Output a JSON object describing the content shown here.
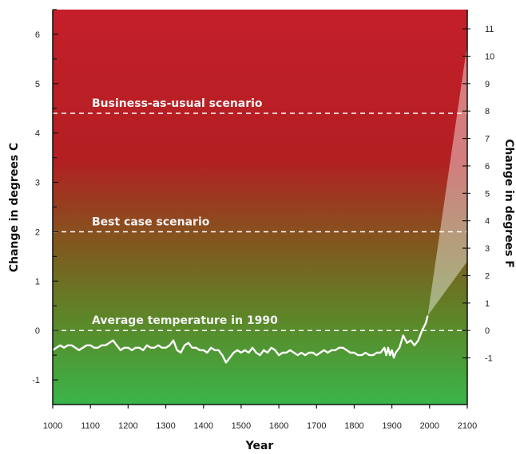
{
  "chart_data": {
    "type": "line",
    "xlabel": "Year",
    "ylabel_left": "Change in degrees C",
    "ylabel_right": "Change in degrees F",
    "xlim": [
      1000,
      2100
    ],
    "ylim": [
      -1.5,
      6.5
    ],
    "x_ticks": [
      1000,
      1100,
      1200,
      1300,
      1400,
      1500,
      1600,
      1700,
      1800,
      1900,
      2000,
      2100
    ],
    "y_ticks_left": [
      -1,
      0,
      1,
      2,
      3,
      4,
      5,
      6
    ],
    "y_ticks_right": [
      -1,
      0,
      1,
      2,
      3,
      4,
      5,
      6,
      7,
      8,
      9,
      10,
      11
    ],
    "reference_lines": [
      {
        "label": "Business-as-usual scenario",
        "y": 4.4
      },
      {
        "label": "Best case scenario",
        "y": 2.0
      },
      {
        "label": "Average temperature in 1990",
        "y": 0.0
      }
    ],
    "series": [
      {
        "x": [
          1000,
          1010,
          1020,
          1030,
          1040,
          1050,
          1060,
          1070,
          1080,
          1090,
          1100,
          1110,
          1120,
          1130,
          1140,
          1150,
          1160,
          1170,
          1180,
          1190,
          1200,
          1210,
          1220,
          1230,
          1240,
          1250,
          1260,
          1270,
          1280,
          1290,
          1300,
          1310,
          1320,
          1330,
          1340,
          1350,
          1360,
          1370,
          1380,
          1390,
          1400,
          1410,
          1420,
          1430,
          1440,
          1450,
          1460,
          1470,
          1480,
          1490,
          1500,
          1510,
          1520,
          1530,
          1540,
          1550,
          1560,
          1570,
          1580,
          1590,
          1600,
          1610,
          1620,
          1630,
          1640,
          1650,
          1660,
          1670,
          1680,
          1690,
          1700,
          1710,
          1720,
          1730,
          1740,
          1750,
          1760,
          1770,
          1780,
          1790,
          1800,
          1810,
          1820,
          1830,
          1840,
          1850,
          1860,
          1870,
          1880,
          1885,
          1890,
          1895,
          1900,
          1905,
          1910,
          1920,
          1930,
          1940,
          1950,
          1960,
          1970,
          1980,
          1990,
          1995
        ],
        "y": [
          -0.4,
          -0.35,
          -0.3,
          -0.35,
          -0.3,
          -0.3,
          -0.35,
          -0.4,
          -0.35,
          -0.3,
          -0.3,
          -0.35,
          -0.35,
          -0.3,
          -0.3,
          -0.25,
          -0.2,
          -0.3,
          -0.4,
          -0.35,
          -0.35,
          -0.4,
          -0.35,
          -0.35,
          -0.4,
          -0.3,
          -0.35,
          -0.35,
          -0.3,
          -0.35,
          -0.35,
          -0.3,
          -0.2,
          -0.4,
          -0.45,
          -0.3,
          -0.25,
          -0.35,
          -0.35,
          -0.4,
          -0.4,
          -0.45,
          -0.35,
          -0.4,
          -0.4,
          -0.5,
          -0.65,
          -0.55,
          -0.45,
          -0.4,
          -0.45,
          -0.4,
          -0.45,
          -0.35,
          -0.45,
          -0.5,
          -0.4,
          -0.45,
          -0.35,
          -0.4,
          -0.5,
          -0.45,
          -0.45,
          -0.4,
          -0.45,
          -0.5,
          -0.45,
          -0.5,
          -0.45,
          -0.45,
          -0.5,
          -0.45,
          -0.4,
          -0.45,
          -0.4,
          -0.4,
          -0.35,
          -0.35,
          -0.4,
          -0.45,
          -0.45,
          -0.5,
          -0.5,
          -0.45,
          -0.5,
          -0.5,
          -0.45,
          -0.45,
          -0.35,
          -0.5,
          -0.35,
          -0.5,
          -0.4,
          -0.55,
          -0.45,
          -0.35,
          -0.1,
          -0.25,
          -0.2,
          -0.3,
          -0.2,
          0.0,
          0.15,
          0.3
        ]
      }
    ],
    "projection_range": {
      "x": [
        1995,
        2100
      ],
      "y_start": 0.3,
      "y_low_end": 1.4,
      "y_high_end": 5.8
    }
  },
  "colors": {
    "background_top": "#c41f2a",
    "background_mid": "#7f5a1e",
    "background_bottom": "#39b54a",
    "line": "#ffffff",
    "dashed": "#ffffff",
    "projection": "#ffffff"
  }
}
